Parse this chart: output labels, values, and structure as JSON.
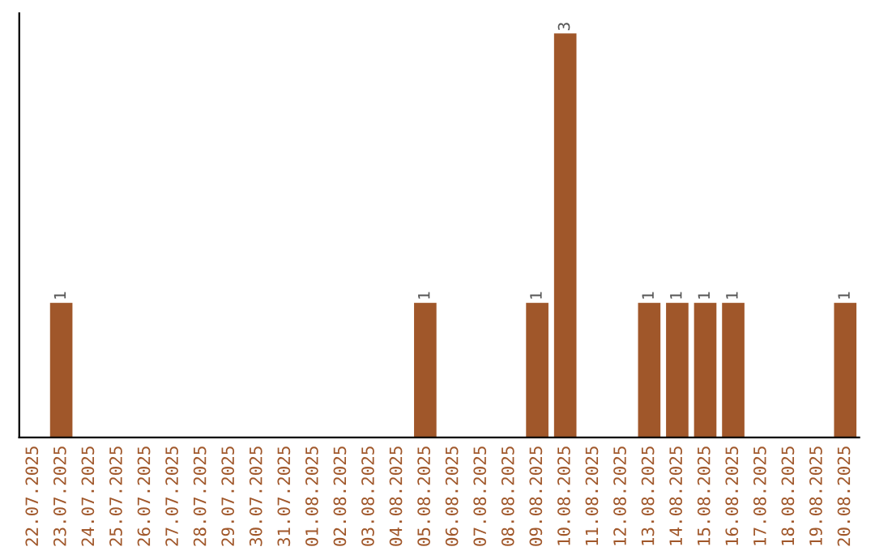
{
  "chart_data": {
    "type": "bar",
    "categories": [
      "22.07.2025",
      "23.07.2025",
      "24.07.2025",
      "25.07.2025",
      "26.07.2025",
      "27.07.2025",
      "28.07.2025",
      "29.07.2025",
      "30.07.2025",
      "31.07.2025",
      "01.08.2025",
      "02.08.2025",
      "03.08.2025",
      "04.08.2025",
      "05.08.2025",
      "06.08.2025",
      "07.08.2025",
      "08.08.2025",
      "09.08.2025",
      "10.08.2025",
      "11.08.2025",
      "12.08.2025",
      "13.08.2025",
      "14.08.2025",
      "15.08.2025",
      "16.08.2025",
      "17.08.2025",
      "18.08.2025",
      "19.08.2025",
      "20.08.2025"
    ],
    "values": [
      0,
      1,
      0,
      0,
      0,
      0,
      0,
      0,
      0,
      0,
      0,
      0,
      0,
      0,
      1,
      0,
      0,
      0,
      1,
      3,
      0,
      0,
      1,
      1,
      1,
      1,
      0,
      0,
      0,
      1
    ],
    "value_labels": [
      null,
      "1",
      null,
      null,
      null,
      null,
      null,
      null,
      null,
      null,
      null,
      null,
      null,
      null,
      "1",
      null,
      null,
      null,
      "1",
      "3",
      null,
      null,
      "1",
      "1",
      "1",
      "1",
      null,
      null,
      null,
      "1"
    ],
    "color": "#a0572a",
    "tick_labels": "x",
    "grid": false,
    "legend": false
  }
}
